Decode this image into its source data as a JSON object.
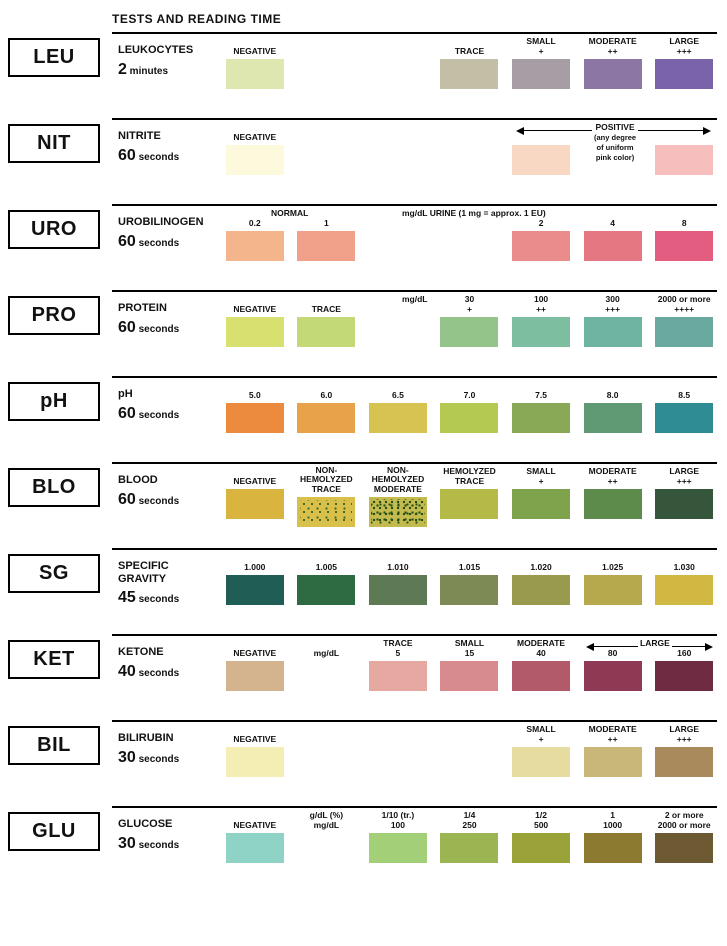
{
  "header": "TESTS AND READING TIME",
  "rows": [
    {
      "code": "LEU",
      "name": "LEUKOCYTES",
      "time_num": "2",
      "time_unit": "minutes",
      "cells": [
        {
          "label": "NEGATIVE",
          "color": "#dfe7b0"
        },
        {
          "label": "",
          "color": null
        },
        {
          "label": "",
          "color": null
        },
        {
          "label": "TRACE",
          "color": "#c2bfa6"
        },
        {
          "label": "SMALL\n+",
          "color": "#a69ea4"
        },
        {
          "label": "MODERATE\n++",
          "color": "#8c76a3"
        },
        {
          "label": "LARGE\n+++",
          "color": "#7a63a8"
        }
      ]
    },
    {
      "code": "NIT",
      "name": "NITRITE",
      "time_num": "60",
      "time_unit": "seconds",
      "note": {
        "text": "POSITIVE",
        "sub": "(any degree\nof uniform\npink color)",
        "arrow": true
      },
      "cells": [
        {
          "label": "NEGATIVE",
          "color": "#fdf9dd"
        },
        {
          "label": "",
          "color": null
        },
        {
          "label": "",
          "color": null
        },
        {
          "label": "",
          "color": null
        },
        {
          "label": "",
          "color": "#f8d8c2"
        },
        {
          "label": "",
          "color": null
        },
        {
          "label": "",
          "color": "#f6bfbd"
        }
      ]
    },
    {
      "code": "URO",
      "name": "UROBILINOGEN",
      "time_num": "60",
      "time_unit": "seconds",
      "group_label": {
        "text": "NORMAL",
        "span": [
          0,
          1
        ]
      },
      "mid_note": {
        "text": "mg/dL URINE (1 mg = approx. 1 EU)",
        "col": 3
      },
      "cells": [
        {
          "label": "0.2",
          "color": "#f4b58c"
        },
        {
          "label": "1",
          "color": "#f1a189"
        },
        {
          "label": "",
          "color": null
        },
        {
          "label": "",
          "color": null
        },
        {
          "label": "2",
          "color": "#e98c8b"
        },
        {
          "label": "4",
          "color": "#e57783"
        },
        {
          "label": "8",
          "color": "#e25d7f"
        }
      ]
    },
    {
      "code": "PRO",
      "name": "PROTEIN",
      "time_num": "60",
      "time_unit": "seconds",
      "mid_note": {
        "text": "mg/dL",
        "col": 3,
        "small": true
      },
      "cells": [
        {
          "label": "NEGATIVE",
          "color": "#d8e070"
        },
        {
          "label": "TRACE",
          "color": "#c3d978"
        },
        {
          "label": "",
          "color": null
        },
        {
          "label": "30\n+",
          "color": "#95c48b"
        },
        {
          "label": "100\n++",
          "color": "#7dbda0"
        },
        {
          "label": "300\n+++",
          "color": "#6fb4a2"
        },
        {
          "label": "2000 or more\n++++",
          "color": "#6aa9a0"
        }
      ]
    },
    {
      "code": "pH",
      "name": "pH",
      "time_num": "60",
      "time_unit": "seconds",
      "cells": [
        {
          "label": "5.0",
          "color": "#ec8a3d"
        },
        {
          "label": "6.0",
          "color": "#e8a24a"
        },
        {
          "label": "6.5",
          "color": "#d6c352"
        },
        {
          "label": "7.0",
          "color": "#b4c952"
        },
        {
          "label": "7.5",
          "color": "#8aa957"
        },
        {
          "label": "8.0",
          "color": "#5f9a75"
        },
        {
          "label": "8.5",
          "color": "#2f8c94"
        }
      ]
    },
    {
      "code": "BLO",
      "name": "BLOOD",
      "time_num": "60",
      "time_unit": "seconds",
      "cells": [
        {
          "label": "NEGATIVE",
          "color": "#d9b53f"
        },
        {
          "label": "NON-HEMOLYZED\nTRACE",
          "color": "#d9c04a",
          "speckle": "speckle"
        },
        {
          "label": "NON-HEMOLYZED\nMODERATE",
          "color": "#c4bb4e",
          "speckle": "speckle-dense"
        },
        {
          "label": "HEMOLYZED\nTRACE",
          "color": "#b4b948"
        },
        {
          "label": "SMALL\n+",
          "color": "#7fa34c"
        },
        {
          "label": "MODERATE\n++",
          "color": "#5d8b4b"
        },
        {
          "label": "LARGE\n+++",
          "color": "#35563a"
        }
      ]
    },
    {
      "code": "SG",
      "name": "SPECIFIC\nGRAVITY",
      "time_num": "45",
      "time_unit": "seconds",
      "cells": [
        {
          "label": "1.000",
          "color": "#1f5d55"
        },
        {
          "label": "1.005",
          "color": "#2e6b43"
        },
        {
          "label": "1.010",
          "color": "#5d7a55"
        },
        {
          "label": "1.015",
          "color": "#7d8a55"
        },
        {
          "label": "1.020",
          "color": "#9a9a4f"
        },
        {
          "label": "1.025",
          "color": "#b6a84c"
        },
        {
          "label": "1.030",
          "color": "#d1b842"
        }
      ]
    },
    {
      "code": "KET",
      "name": "KETONE",
      "time_num": "40",
      "time_unit": "seconds",
      "large_arrow": {
        "text": "LARGE",
        "span": [
          5,
          6
        ]
      },
      "cells": [
        {
          "label": "NEGATIVE",
          "color": "#d4b48e"
        },
        {
          "label": "mg/dL",
          "color": null
        },
        {
          "label": "TRACE\n5",
          "color": "#e6a9a1"
        },
        {
          "label": "SMALL\n15",
          "color": "#d78b8f"
        },
        {
          "label": "MODERATE\n40",
          "color": "#b25a6a"
        },
        {
          "label": "80",
          "color": "#8e3a55"
        },
        {
          "label": "160",
          "color": "#6e2b41"
        }
      ]
    },
    {
      "code": "BIL",
      "name": "BILIRUBIN",
      "time_num": "30",
      "time_unit": "seconds",
      "cells": [
        {
          "label": "NEGATIVE",
          "color": "#f4eeb4"
        },
        {
          "label": "",
          "color": null
        },
        {
          "label": "",
          "color": null
        },
        {
          "label": "",
          "color": null
        },
        {
          "label": "SMALL\n+",
          "color": "#e6dca0"
        },
        {
          "label": "MODERATE\n++",
          "color": "#c9b679"
        },
        {
          "label": "LARGE\n+++",
          "color": "#a88a5c"
        }
      ]
    },
    {
      "code": "GLU",
      "name": "GLUCOSE",
      "time_num": "30",
      "time_unit": "seconds",
      "cells": [
        {
          "label": "NEGATIVE",
          "color": "#8fd2c6"
        },
        {
          "label": "g/dL (%)\nmg/dL",
          "color": null
        },
        {
          "label": "1/10 (tr.)\n100",
          "color": "#a4cf79"
        },
        {
          "label": "1/4\n250",
          "color": "#9bb552"
        },
        {
          "label": "1/2\n500",
          "color": "#9aa33a"
        },
        {
          "label": "1\n1000",
          "color": "#8c7a30"
        },
        {
          "label": "2 or more\n2000 or more",
          "color": "#6e5a32"
        }
      ]
    }
  ]
}
